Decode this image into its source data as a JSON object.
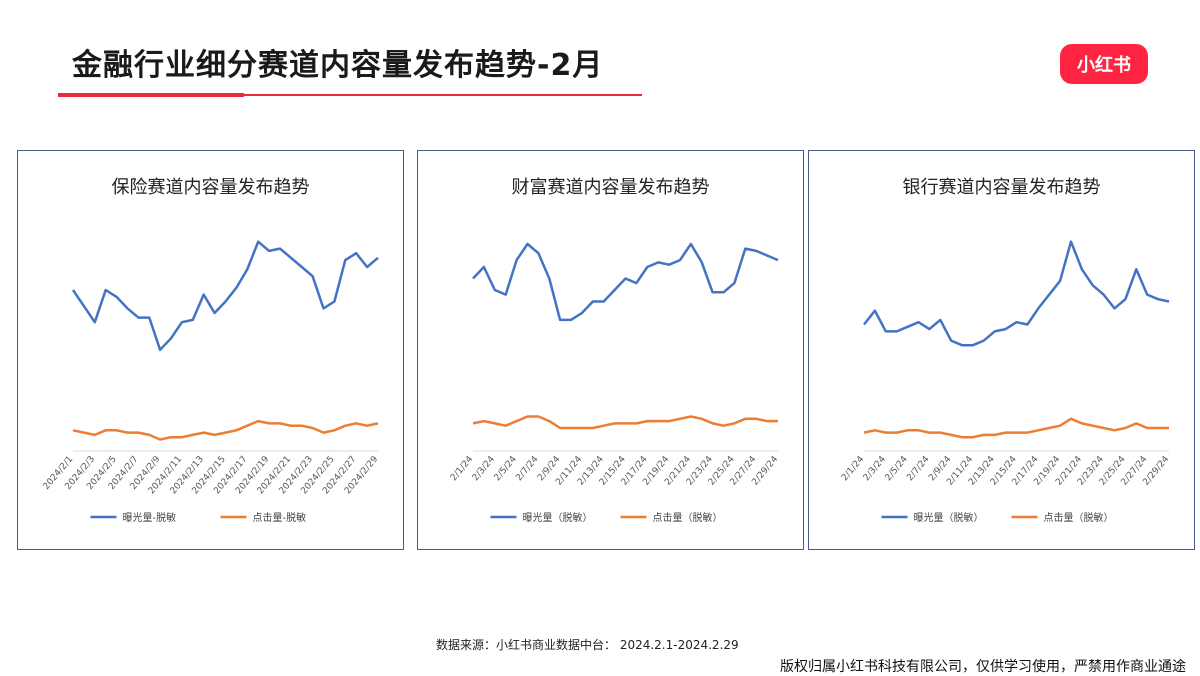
{
  "header": {
    "title": "金融行业细分赛道内容量发布趋势-2月",
    "logo_text": "小红书"
  },
  "colors": {
    "accent": "#e8293f",
    "series1": "#4472c4",
    "series2": "#ed7d31",
    "border": "#4a5a8c"
  },
  "footer": {
    "source": "数据来源：小红书商业数据中台： 2024.2.1-2024.2.29",
    "copyright": "版权归属小红书科技有限公司，仅供学习使用，严禁用作商业通途"
  },
  "chart_data": [
    {
      "type": "line",
      "title": "保险赛道内容量发布趋势",
      "x": [
        "2024/2/1",
        "2024/2/2",
        "2024/2/3",
        "2024/2/4",
        "2024/2/5",
        "2024/2/6",
        "2024/2/7",
        "2024/2/8",
        "2024/2/9",
        "2024/2/10",
        "2024/2/11",
        "2024/2/12",
        "2024/2/13",
        "2024/2/14",
        "2024/2/15",
        "2024/2/16",
        "2024/2/17",
        "2024/2/18",
        "2024/2/19",
        "2024/2/20",
        "2024/2/21",
        "2024/2/22",
        "2024/2/23",
        "2024/2/24",
        "2024/2/25",
        "2024/2/26",
        "2024/2/27",
        "2024/2/28",
        "2024/2/29"
      ],
      "tick_labels": [
        "2024/2/1",
        "2024/2/3",
        "2024/2/5",
        "2024/2/7",
        "2024/2/9",
        "2024/2/11",
        "2024/2/13",
        "2024/2/15",
        "2024/2/17",
        "2024/2/19",
        "2024/2/21",
        "2024/2/23",
        "2024/2/25",
        "2024/2/27",
        "2024/2/29"
      ],
      "series": [
        {
          "name": "曝光量-脱敏",
          "values": [
            70,
            63,
            56,
            70,
            67,
            62,
            58,
            58,
            44,
            49,
            56,
            57,
            68,
            60,
            65,
            71,
            79,
            91,
            87,
            88,
            84,
            80,
            76,
            62,
            65,
            83,
            86,
            80,
            84
          ]
        },
        {
          "name": "点击量-脱敏",
          "values": [
            9,
            8,
            7,
            9,
            9,
            8,
            8,
            7,
            5,
            6,
            6,
            7,
            8,
            7,
            8,
            9,
            11,
            13,
            12,
            12,
            11,
            11,
            10,
            8,
            9,
            11,
            12,
            11,
            12
          ]
        }
      ],
      "ylim": [
        0,
        100
      ],
      "legend": "bottom"
    },
    {
      "type": "line",
      "title": "财富赛道内容量发布趋势",
      "x": [
        "2/1/24",
        "2/2/24",
        "2/3/24",
        "2/4/24",
        "2/5/24",
        "2/6/24",
        "2/7/24",
        "2/8/24",
        "2/9/24",
        "2/10/24",
        "2/11/24",
        "2/12/24",
        "2/13/24",
        "2/14/24",
        "2/15/24",
        "2/16/24",
        "2/17/24",
        "2/18/24",
        "2/19/24",
        "2/20/24",
        "2/21/24",
        "2/22/24",
        "2/23/24",
        "2/24/24",
        "2/25/24",
        "2/26/24",
        "2/27/24",
        "2/28/24",
        "2/29/24"
      ],
      "tick_labels": [
        "2/1/24",
        "2/3/24",
        "2/5/24",
        "2/7/24",
        "2/9/24",
        "2/11/24",
        "2/13/24",
        "2/15/24",
        "2/17/24",
        "2/19/24",
        "2/21/24",
        "2/23/24",
        "2/25/24",
        "2/27/24",
        "2/29/24"
      ],
      "series": [
        {
          "name": "曝光量（脱敏）",
          "values": [
            75,
            80,
            70,
            68,
            83,
            90,
            86,
            75,
            57,
            57,
            60,
            65,
            65,
            70,
            75,
            73,
            80,
            82,
            81,
            83,
            90,
            82,
            69,
            69,
            73,
            88,
            87,
            85,
            83
          ]
        },
        {
          "name": "点击量（脱敏）",
          "values": [
            12,
            13,
            12,
            11,
            13,
            15,
            15,
            13,
            10,
            10,
            10,
            10,
            11,
            12,
            12,
            12,
            13,
            13,
            13,
            14,
            15,
            14,
            12,
            11,
            12,
            14,
            14,
            13,
            13
          ]
        }
      ],
      "ylim": [
        0,
        100
      ],
      "legend": "bottom"
    },
    {
      "type": "line",
      "title": "银行赛道内容量发布趋势",
      "x": [
        "2/1/24",
        "2/2/24",
        "2/3/24",
        "2/4/24",
        "2/5/24",
        "2/6/24",
        "2/7/24",
        "2/8/24",
        "2/9/24",
        "2/10/24",
        "2/11/24",
        "2/12/24",
        "2/13/24",
        "2/14/24",
        "2/15/24",
        "2/16/24",
        "2/17/24",
        "2/18/24",
        "2/19/24",
        "2/20/24",
        "2/21/24",
        "2/22/24",
        "2/23/24",
        "2/24/24",
        "2/25/24",
        "2/26/24",
        "2/27/24",
        "2/28/24",
        "2/29/24"
      ],
      "tick_labels": [
        "2/1/24",
        "2/3/24",
        "2/5/24",
        "2/7/24",
        "2/9/24",
        "2/11/24",
        "2/13/24",
        "2/15/24",
        "2/17/24",
        "2/19/24",
        "2/21/24",
        "2/23/24",
        "2/25/24",
        "2/27/24",
        "2/29/24"
      ],
      "series": [
        {
          "name": "曝光量（脱敏）",
          "values": [
            55,
            61,
            52,
            52,
            54,
            56,
            53,
            57,
            48,
            46,
            46,
            48,
            52,
            53,
            56,
            55,
            62,
            68,
            74,
            91,
            79,
            72,
            68,
            62,
            66,
            79,
            68,
            66,
            65
          ]
        },
        {
          "name": "点击量（脱敏）",
          "values": [
            8,
            9,
            8,
            8,
            9,
            9,
            8,
            8,
            7,
            6,
            6,
            7,
            7,
            8,
            8,
            8,
            9,
            10,
            11,
            14,
            12,
            11,
            10,
            9,
            10,
            12,
            10,
            10,
            10
          ]
        }
      ],
      "ylim": [
        0,
        100
      ],
      "legend": "bottom"
    }
  ]
}
